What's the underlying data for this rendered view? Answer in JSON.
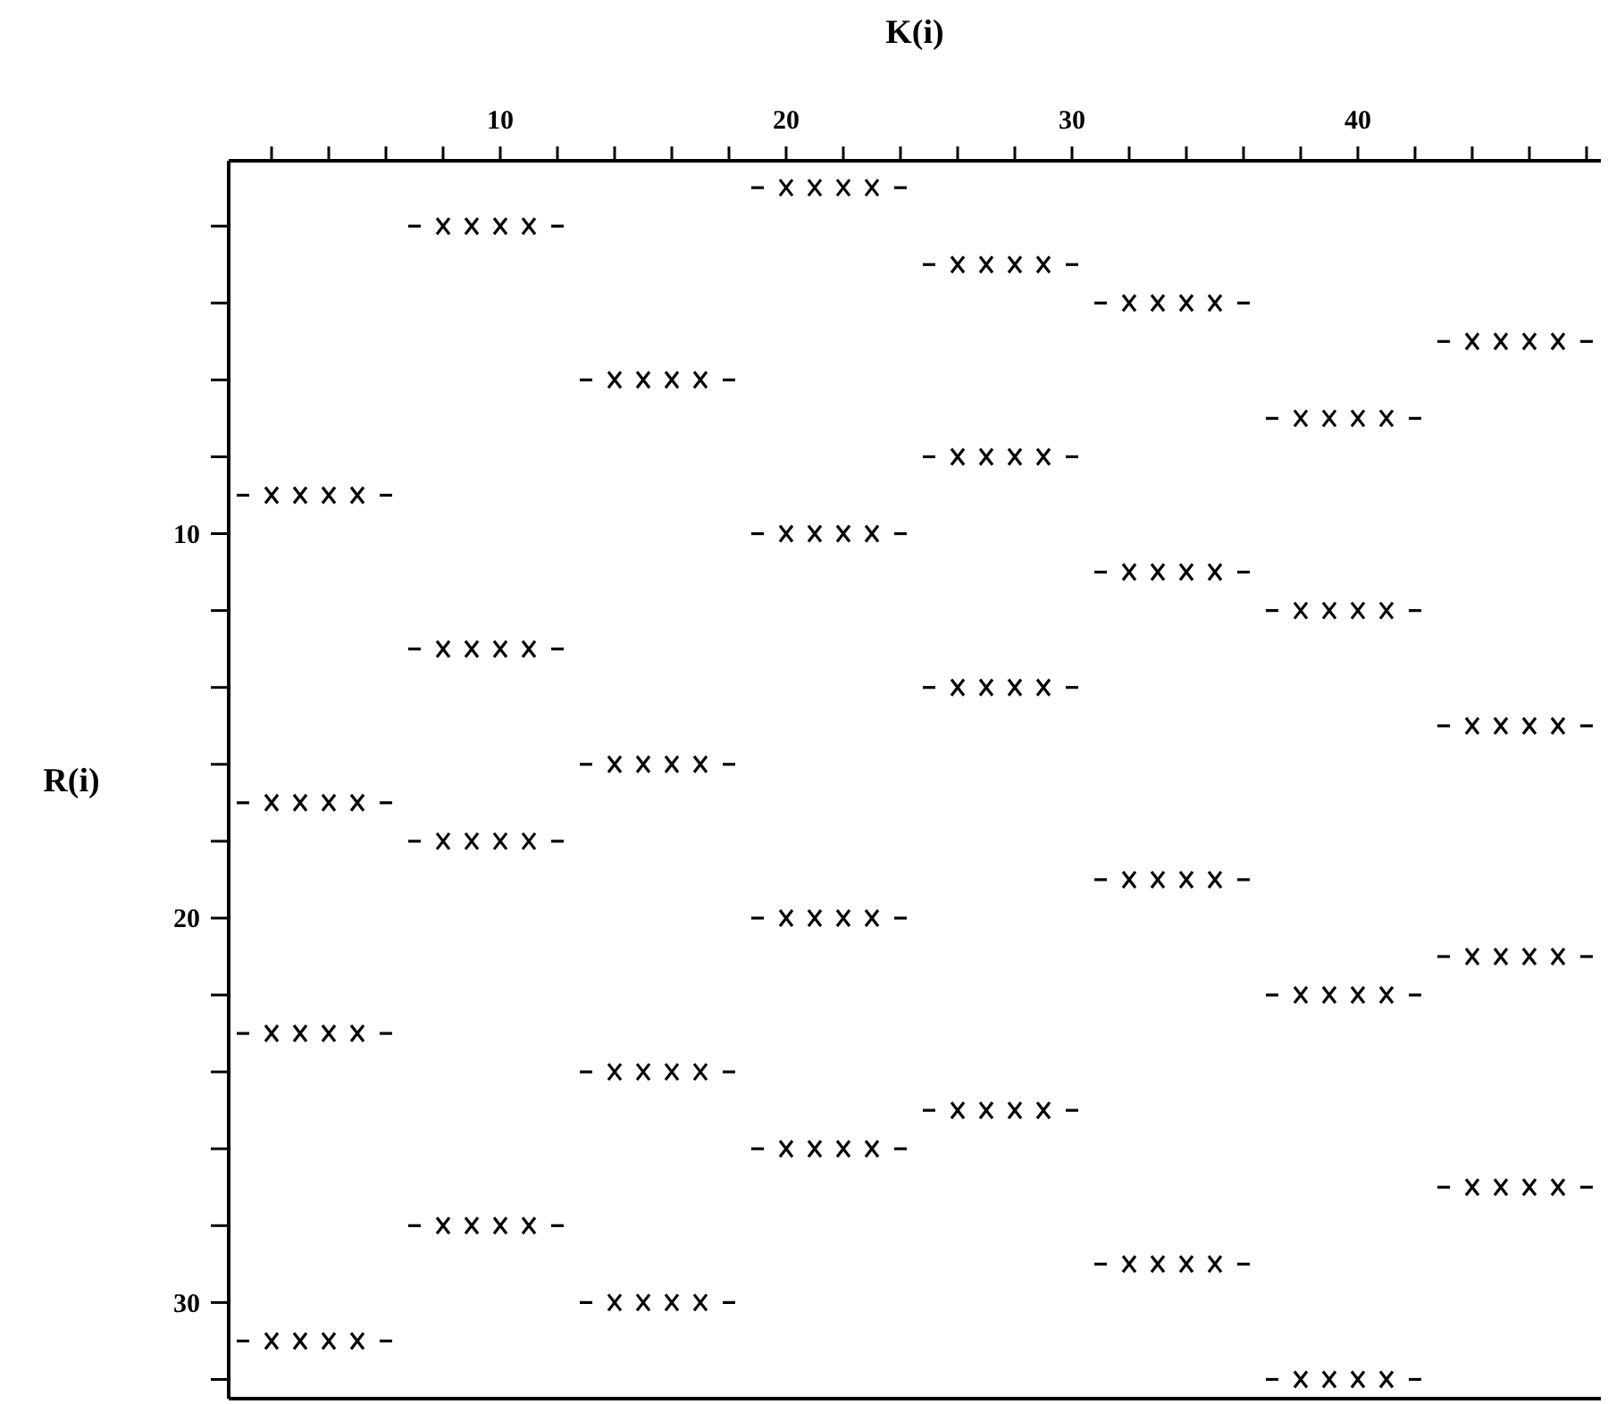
{
  "chart_data": {
    "type": "scatter",
    "xlabel": "K(i)",
    "ylabel": "R(i)",
    "xlim": [
      0.5,
      48.5
    ],
    "ylim": [
      32.5,
      0.3
    ],
    "xticks": [
      {
        "value": 2,
        "label": null
      },
      {
        "value": 4,
        "label": null
      },
      {
        "value": 6,
        "label": null
      },
      {
        "value": 8,
        "label": null
      },
      10,
      {
        "value": 12,
        "label": null
      },
      {
        "value": 14,
        "label": null
      },
      {
        "value": 16,
        "label": null
      },
      {
        "value": 18,
        "label": null
      },
      20,
      {
        "value": 22,
        "label": null
      },
      {
        "value": 24,
        "label": null
      },
      {
        "value": 26,
        "label": null
      },
      {
        "value": 28,
        "label": null
      },
      30,
      {
        "value": 32,
        "label": null
      },
      {
        "value": 34,
        "label": null
      },
      {
        "value": 36,
        "label": null
      },
      {
        "value": 38,
        "label": null
      },
      40,
      {
        "value": 42,
        "label": null
      },
      {
        "value": 44,
        "label": null
      },
      {
        "value": 46,
        "label": null
      },
      {
        "value": 48,
        "label": null
      }
    ],
    "yticks": [
      {
        "value": 2,
        "label": null
      },
      {
        "value": 4,
        "label": null
      },
      {
        "value": 6,
        "label": null
      },
      {
        "value": 8,
        "label": null
      },
      10,
      {
        "value": 12,
        "label": null
      },
      {
        "value": 14,
        "label": null
      },
      {
        "value": 16,
        "label": null
      },
      {
        "value": 18,
        "label": null
      },
      20,
      {
        "value": 22,
        "label": null
      },
      {
        "value": 24,
        "label": null
      },
      {
        "value": 26,
        "label": null
      },
      {
        "value": 28,
        "label": null
      },
      30,
      {
        "value": 32,
        "label": null
      }
    ],
    "series": [
      {
        "color": "#000000",
        "marker": "cross",
        "x": [
          2,
          3,
          4,
          5,
          2,
          3,
          4,
          5,
          2,
          3,
          4,
          5,
          2,
          3,
          4,
          5,
          8,
          9,
          10,
          11,
          8,
          9,
          10,
          11,
          8,
          9,
          10,
          11,
          8,
          9,
          10,
          11,
          14,
          15,
          16,
          17,
          14,
          15,
          16,
          17,
          14,
          15,
          16,
          17,
          14,
          15,
          16,
          17,
          20,
          21,
          22,
          23,
          20,
          21,
          22,
          23,
          20,
          21,
          22,
          23,
          20,
          21,
          22,
          23,
          26,
          27,
          28,
          29,
          26,
          27,
          28,
          29,
          26,
          27,
          28,
          29,
          26,
          27,
          28,
          29,
          32,
          33,
          34,
          35,
          32,
          33,
          34,
          35,
          32,
          33,
          34,
          35,
          32,
          33,
          34,
          35,
          38,
          39,
          40,
          41,
          38,
          39,
          40,
          41,
          38,
          39,
          40,
          41,
          38,
          39,
          40,
          41,
          44,
          45,
          46,
          47,
          44,
          45,
          46,
          47,
          44,
          45,
          46,
          47,
          44,
          45,
          46,
          47
        ],
        "values": [
          9,
          9,
          9,
          9,
          17,
          17,
          17,
          17,
          23,
          23,
          23,
          23,
          31,
          31,
          31,
          31,
          2,
          2,
          2,
          2,
          13,
          13,
          13,
          13,
          18,
          18,
          18,
          18,
          28,
          28,
          28,
          28,
          6,
          6,
          6,
          6,
          16,
          16,
          16,
          16,
          24,
          24,
          24,
          24,
          30,
          30,
          30,
          30,
          1,
          1,
          1,
          1,
          10,
          10,
          10,
          10,
          20,
          20,
          20,
          20,
          26,
          26,
          26,
          26,
          3,
          3,
          3,
          3,
          8,
          8,
          8,
          8,
          14,
          14,
          14,
          14,
          25,
          25,
          25,
          25,
          4,
          4,
          4,
          4,
          11,
          11,
          11,
          11,
          19,
          19,
          19,
          19,
          29,
          29,
          29,
          29,
          7,
          7,
          7,
          7,
          12,
          12,
          12,
          12,
          22,
          22,
          22,
          22,
          32,
          32,
          32,
          32,
          5,
          5,
          5,
          5,
          15,
          15,
          15,
          15,
          21,
          21,
          21,
          21,
          27,
          27,
          27,
          27
        ]
      }
    ]
  }
}
